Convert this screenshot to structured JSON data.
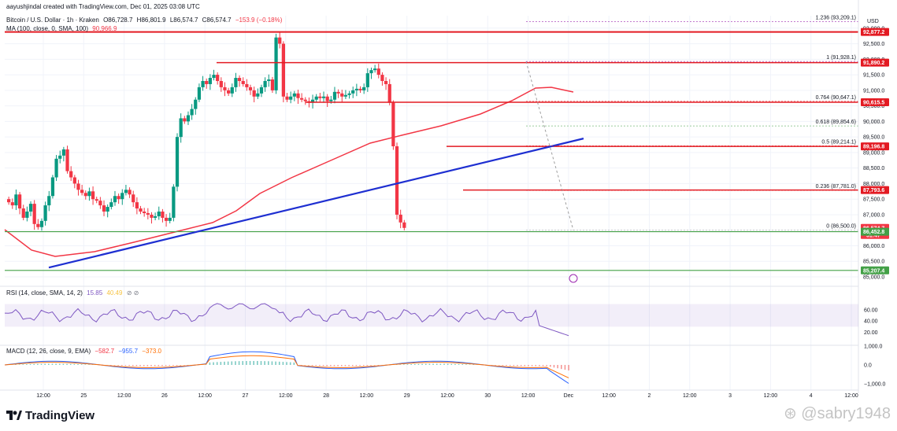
{
  "header": {
    "author_line": "aayushjindal created with TradingView.com, Dec 01, 2025 03:08 UTC",
    "symbol": "Bitcoin / U.S. Dollar · 1h · Kraken",
    "open": "O86,728.7",
    "high": "H86,801.9",
    "low": "L86,574.7",
    "close": "C86,574.7",
    "change": "−153.9 (−0.18%)",
    "ma_label": "MA (100, close, 0, SMA, 100)",
    "ma_value": "90,966.9"
  },
  "colors": {
    "up": "#089981",
    "down": "#f23645",
    "ma_line": "#f23645",
    "trend_line": "#1e2fd1",
    "level_red": "#e31b23",
    "level_green": "#43a047",
    "rsi_line": "#7e57c2",
    "macd_line": "#2962ff",
    "signal_line": "#ff6d00"
  },
  "price_axis": {
    "currency": "USD",
    "ticks": [
      "93,000.0",
      "92,500.0",
      "92,000.0",
      "91,500.0",
      "91,000.0",
      "90,500.0",
      "90,000.0",
      "89,500.0",
      "89,000.0",
      "88,500.0",
      "88,000.0",
      "87,500.0",
      "87,000.0",
      "86,500.0",
      "86,000.0",
      "85,500.0",
      "85,000.0"
    ]
  },
  "price_tags": [
    {
      "label": "92,877.2",
      "price": 92877.2,
      "color": "#e31b23"
    },
    {
      "label": "91,890.2",
      "price": 91890.2,
      "color": "#e31b23"
    },
    {
      "label": "90,615.5",
      "price": 90615.5,
      "color": "#e31b23"
    },
    {
      "label": "89,196.8",
      "price": 89196.8,
      "color": "#e31b23"
    },
    {
      "label": "87,793.6",
      "price": 87793.6,
      "color": "#e31b23"
    },
    {
      "label": "86,574.7",
      "price": 86574.7,
      "color": "#f23645",
      "sub": "51:47"
    },
    {
      "label": "86,452.8",
      "price": 86452.8,
      "color": "#43a047"
    },
    {
      "label": "85,207.4",
      "price": 85207.4,
      "color": "#43a047"
    }
  ],
  "fib_levels": [
    {
      "label": "1.236 (93,209.1)",
      "price": 93209.1,
      "color": "#9c27b0"
    },
    {
      "label": "1 (91,928.1)",
      "price": 91928.1,
      "color": "#9c27b0"
    },
    {
      "label": "0.764 (90,647.1)",
      "price": 90647.1,
      "color": "#e31b23"
    },
    {
      "label": "0.618 (89,854.6)",
      "price": 89854.6,
      "color": "#43a047"
    },
    {
      "label": "0.5 (89,214.1)",
      "price": 89214.1,
      "color": "#e31b23"
    },
    {
      "label": "0.236 (87,781.0)",
      "price": 87781.0,
      "color": "#e31b23"
    },
    {
      "label": "0 (86,500.0)",
      "price": 86500.0,
      "color": "#9e9e9e"
    }
  ],
  "time_axis": [
    "12:00",
    "25",
    "12:00",
    "26",
    "12:00",
    "27",
    "12:00",
    "28",
    "12:00",
    "29",
    "12:00",
    "30",
    "12:00",
    "Dec",
    "12:00",
    "2",
    "12:00",
    "3",
    "12:00",
    "4",
    "12:00"
  ],
  "rsi": {
    "label": "RSI (14, close, SMA, 14, 2)",
    "value1": "15.85",
    "value2": "40.49",
    "ticks": [
      "60.00",
      "40.00",
      "20.00"
    ]
  },
  "macd": {
    "label": "MACD (12, 26, close, 9, EMA)",
    "hist": "−582.7",
    "macd": "−955.7",
    "signal": "−373.0",
    "ticks": [
      "1,000.0",
      "0.0",
      "−1,000.0"
    ]
  },
  "chart_data": {
    "type": "candlestick",
    "title": "Bitcoin / U.S. Dollar · 1h · Kraken",
    "ylim": [
      85000,
      93400
    ],
    "x_range": [
      "Nov 24 06:00",
      "Dec 04 14:00"
    ],
    "closes": [
      87400,
      87300,
      87650,
      87200,
      86900,
      87100,
      87350,
      86700,
      86600,
      86800,
      87300,
      87600,
      88200,
      88800,
      88900,
      89100,
      88400,
      88200,
      88000,
      87800,
      87700,
      87600,
      87750,
      87500,
      87450,
      87300,
      87100,
      87250,
      87400,
      87600,
      87500,
      87700,
      87800,
      87650,
      87400,
      87200,
      87100,
      87050,
      87000,
      86900,
      86950,
      87100,
      86900,
      86800,
      86900,
      87900,
      89500,
      90100,
      90000,
      90200,
      90400,
      90700,
      91100,
      91300,
      91200,
      91400,
      91500,
      91300,
      91100,
      91000,
      90900,
      91100,
      91400,
      91300,
      91200,
      91100,
      91000,
      90800,
      90900,
      91100,
      91300,
      91350,
      91000,
      92700,
      92500,
      90800,
      90700,
      90800,
      90900,
      90750,
      90700,
      90650,
      90600,
      90700,
      90800,
      90750,
      90800,
      90650,
      90700,
      90950,
      90900,
      90800,
      90850,
      90900,
      91000,
      91050,
      91000,
      91100,
      91550,
      91650,
      91700,
      91500,
      91300,
      91200,
      90600,
      89200,
      87000,
      86750,
      86574.7
    ]
  }
}
